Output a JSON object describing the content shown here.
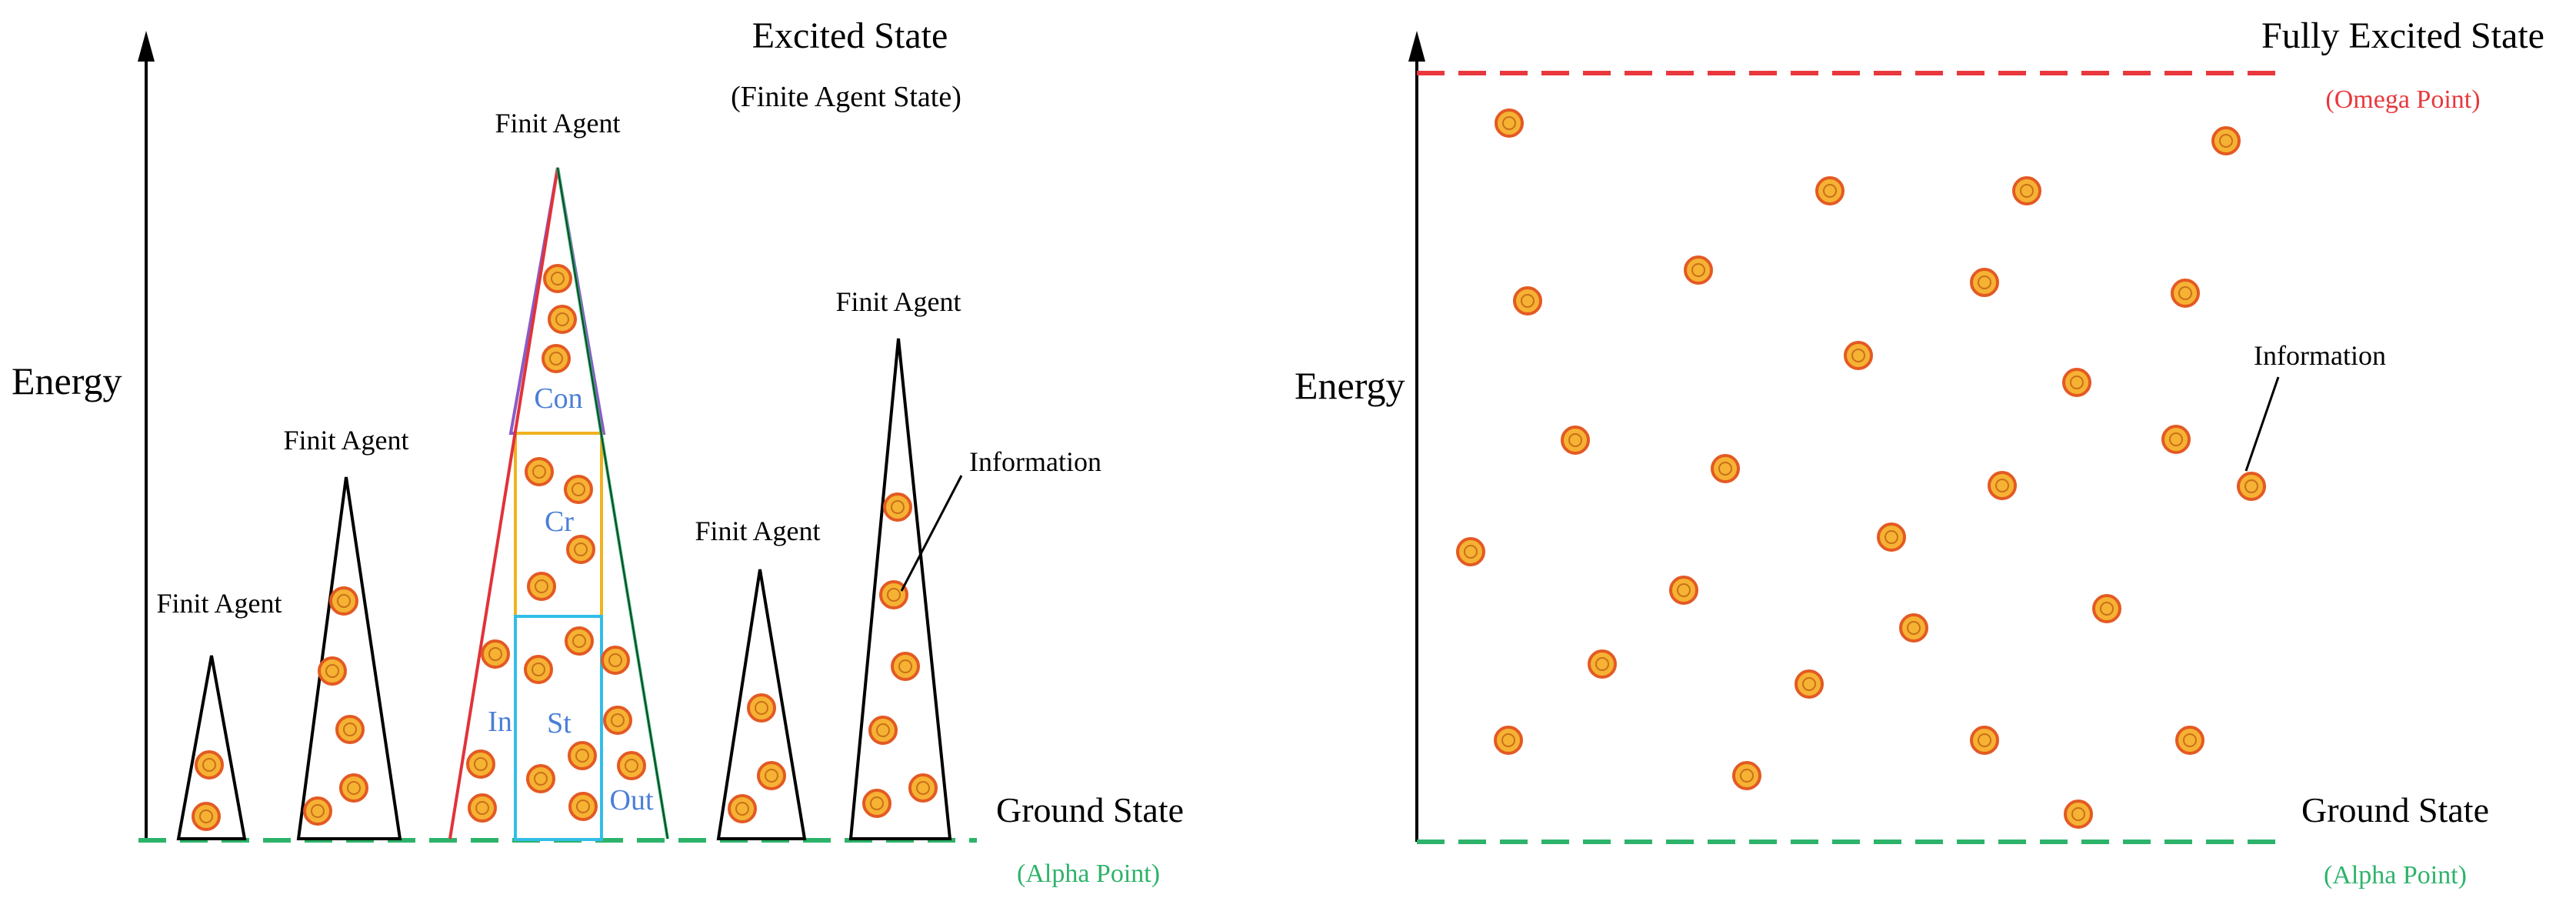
{
  "left_panel": {
    "y_axis_label": "Energy",
    "excited_state": "Excited State",
    "excited_state_note": "(Finite Agent State)",
    "ground_state": "Ground State",
    "ground_state_note": "(Alpha Point)",
    "agent_label": "Finit Agent",
    "information_label": "Information",
    "segments": {
      "consciousness": "Con",
      "creation": "Cr",
      "input": "In",
      "storage": "St",
      "output": "Out"
    }
  },
  "right_panel": {
    "y_axis_label": "Energy",
    "fully_excited_state": "Fully Excited State",
    "fully_excited_state_note": "(Omega Point)",
    "ground_state": "Ground State",
    "ground_state_note": "(Alpha Point)",
    "information_label": "Information"
  },
  "colors": {
    "ground_line": "#2db36a",
    "omega_line": "#e8383d",
    "omega_text": "#e8383d",
    "alpha_text": "#2db36a",
    "segment_text": "#4a7fd6",
    "con_border": "#8a5cc8",
    "cr_border": "#f0b21e",
    "st_border": "#33bde8",
    "outer_red": "#e0333a",
    "outer_green": "#2db36a",
    "info_fill": "#f6b233",
    "info_stroke": "#e35a23"
  }
}
